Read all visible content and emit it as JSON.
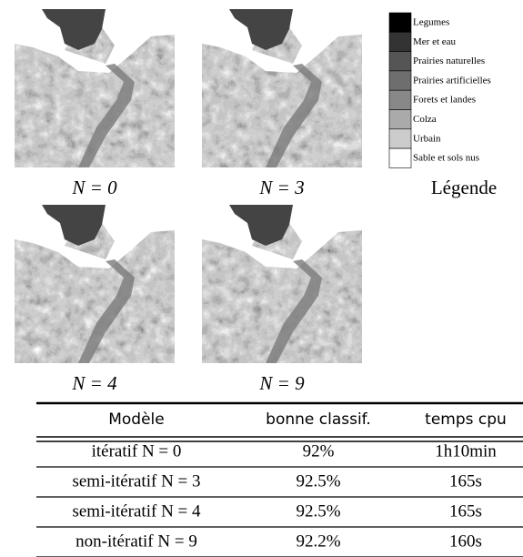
{
  "images": [
    {
      "caption": "N = 0"
    },
    {
      "caption": "N = 3"
    },
    {
      "caption": "N = 4"
    },
    {
      "caption": "N = 9"
    }
  ],
  "legend": {
    "title": "Légende",
    "items": [
      "Legumes",
      "Mer et eau",
      "Prairies naturelles",
      "Prairies artificielles",
      "Forets et landes",
      "Colza",
      "Urbain",
      "Sable et sols nus"
    ]
  },
  "table": {
    "header": [
      "Modèle",
      "bonne classif.",
      "temps cpu"
    ],
    "rows": [
      [
        "itératif N = 0",
        "92%",
        "1h10min"
      ],
      [
        "semi-itératif N = 3",
        "92.5%",
        "165s"
      ],
      [
        "semi-itératif N = 4",
        "92.5%",
        "165s"
      ],
      [
        "non-itératif N = 9",
        "92.2%",
        "160s"
      ]
    ]
  }
}
